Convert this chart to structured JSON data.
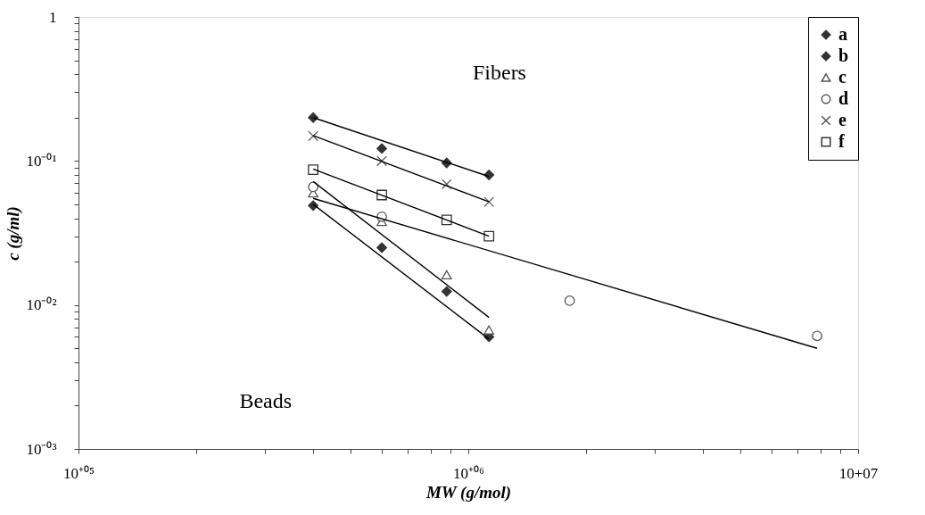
{
  "chart_data": {
    "type": "scatter",
    "xlabel": "MW (g/mol)",
    "ylabel": "c (g/ml)",
    "log": "xy",
    "grid": false,
    "legend": "top right",
    "annotations": [
      "Fibers",
      "Beads"
    ],
    "xlim": [
      100000,
      10000000
    ],
    "ylim": [
      0.001,
      1
    ],
    "xticks": [
      {
        "value": 100000,
        "label": "10⁺⁰⁵"
      },
      {
        "value": 200000,
        "label": null
      },
      {
        "value": 300000,
        "label": null
      },
      {
        "value": 400000,
        "label": null
      },
      {
        "value": 500000,
        "label": null
      },
      {
        "value": 600000,
        "label": null
      },
      {
        "value": 700000,
        "label": null
      },
      {
        "value": 800000,
        "label": null
      },
      {
        "value": 900000,
        "label": null
      },
      {
        "value": 1000000,
        "label": "10⁺⁰⁶"
      },
      {
        "value": 2000000,
        "label": null
      },
      {
        "value": 3000000,
        "label": null
      },
      {
        "value": 4000000,
        "label": null
      },
      {
        "value": 5000000,
        "label": null
      },
      {
        "value": 6000000,
        "label": null
      },
      {
        "value": 7000000,
        "label": null
      },
      {
        "value": 8000000,
        "label": null
      },
      {
        "value": 9000000,
        "label": null
      },
      {
        "value": 10000000,
        "label": "10+07"
      }
    ],
    "yticks": [
      {
        "value": 0.001,
        "label": "10⁻⁰³"
      },
      {
        "value": 0.002,
        "label": null
      },
      {
        "value": 0.003,
        "label": null
      },
      {
        "value": 0.004,
        "label": null
      },
      {
        "value": 0.005,
        "label": null
      },
      {
        "value": 0.006,
        "label": null
      },
      {
        "value": 0.007,
        "label": null
      },
      {
        "value": 0.008,
        "label": null
      },
      {
        "value": 0.009,
        "label": null
      },
      {
        "value": 0.01,
        "label": "10⁻⁰²"
      },
      {
        "value": 0.02,
        "label": null
      },
      {
        "value": 0.03,
        "label": null
      },
      {
        "value": 0.04,
        "label": null
      },
      {
        "value": 0.05,
        "label": null
      },
      {
        "value": 0.06,
        "label": null
      },
      {
        "value": 0.07,
        "label": null
      },
      {
        "value": 0.08,
        "label": null
      },
      {
        "value": 0.09,
        "label": null
      },
      {
        "value": 0.1,
        "label": "10⁻⁰¹"
      },
      {
        "value": 0.2,
        "label": null
      },
      {
        "value": 0.3,
        "label": null
      },
      {
        "value": 0.4,
        "label": null
      },
      {
        "value": 0.5,
        "label": null
      },
      {
        "value": 0.6,
        "label": null
      },
      {
        "value": 0.7,
        "label": null
      },
      {
        "value": 0.8,
        "label": null
      },
      {
        "value": 0.9,
        "label": null
      },
      {
        "value": 1,
        "label": "1"
      }
    ],
    "series": [
      {
        "name": "a",
        "marker": "diamond",
        "color": "#333333",
        "x": [
          400000,
          600000,
          880000,
          1130000
        ],
        "values": [
          0.049,
          0.025,
          0.0124,
          0.006
        ]
      },
      {
        "name": "b",
        "marker": "diamond",
        "color": "#333333",
        "x": [
          400000,
          600000,
          880000,
          1130000
        ],
        "values": [
          0.2,
          0.122,
          0.097,
          0.08
        ]
      },
      {
        "name": "c",
        "marker": "triangle",
        "color": "#555555",
        "x": [
          400000,
          600000,
          880000,
          1130000
        ],
        "values": [
          0.06,
          0.038,
          0.0162,
          0.0067
        ]
      },
      {
        "name": "d",
        "marker": "circle",
        "color": "#555555",
        "x": [
          400000,
          600000,
          1820000,
          7850000
        ],
        "values": [
          0.066,
          0.041,
          0.0107,
          0.0061
        ]
      },
      {
        "name": "e",
        "marker": "cross",
        "color": "#555555",
        "x": [
          400000,
          600000,
          880000,
          1130000
        ],
        "values": [
          0.149,
          0.1,
          0.069,
          0.052
        ]
      },
      {
        "name": "f",
        "marker": "square",
        "color": "#333333",
        "x": [
          400000,
          600000,
          880000,
          1130000
        ],
        "values": [
          0.087,
          0.058,
          0.039,
          0.03
        ]
      },
      {
        "type": "line",
        "color": "#000000",
        "x": [
          400000,
          1130000
        ],
        "values": [
          0.05,
          0.0058
        ]
      },
      {
        "type": "line",
        "color": "#000000",
        "x": [
          400000,
          1130000
        ],
        "values": [
          0.2,
          0.078
        ]
      },
      {
        "type": "line",
        "color": "#000000",
        "x": [
          400000,
          1130000
        ],
        "values": [
          0.072,
          0.0082
        ]
      },
      {
        "type": "line",
        "color": "#000000",
        "x": [
          400000,
          7850000
        ],
        "values": [
          0.055,
          0.005
        ]
      },
      {
        "type": "line",
        "color": "#000000",
        "x": [
          400000,
          1130000
        ],
        "values": [
          0.15,
          0.052
        ]
      },
      {
        "type": "line",
        "color": "#000000",
        "x": [
          400000,
          1130000
        ],
        "values": [
          0.088,
          0.03
        ]
      }
    ]
  }
}
